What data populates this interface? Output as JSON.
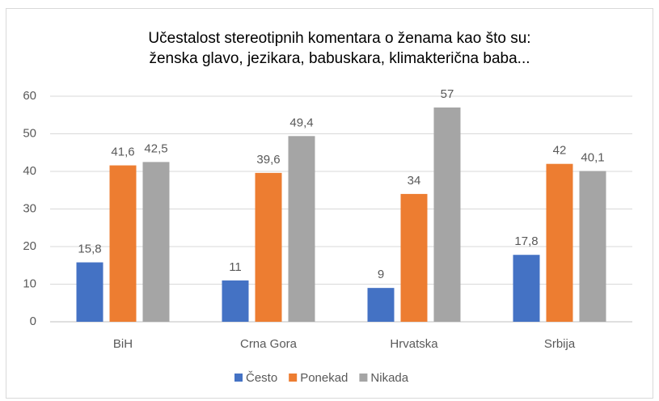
{
  "chart_data": {
    "type": "bar",
    "title": [
      "Učestalost stereotipnih komentara o ženama kao što su:",
      "ženska glavo, jezikara, babuskara, klimakterična baba..."
    ],
    "categories": [
      "BiH",
      "Crna Gora",
      "Hrvatska",
      "Srbija"
    ],
    "series": [
      {
        "name": "Često",
        "color": "#4472c4",
        "values": [
          15.8,
          11,
          9,
          17.8
        ],
        "value_labels": [
          "15,8",
          "11",
          "9",
          "17,8"
        ]
      },
      {
        "name": "Ponekad",
        "color": "#ed7d31",
        "values": [
          41.6,
          39.6,
          34,
          42
        ],
        "value_labels": [
          "41,6",
          "39,6",
          "34",
          "42"
        ]
      },
      {
        "name": "Nikada",
        "color": "#a5a5a5",
        "values": [
          42.5,
          49.4,
          57,
          40.1
        ],
        "value_labels": [
          "42,5",
          "49,4",
          "57",
          "40,1"
        ]
      }
    ],
    "ylim": [
      0,
      60
    ],
    "yticks": [
      0,
      10,
      20,
      30,
      40,
      50,
      60
    ],
    "grid": true,
    "legend": "bottom"
  }
}
